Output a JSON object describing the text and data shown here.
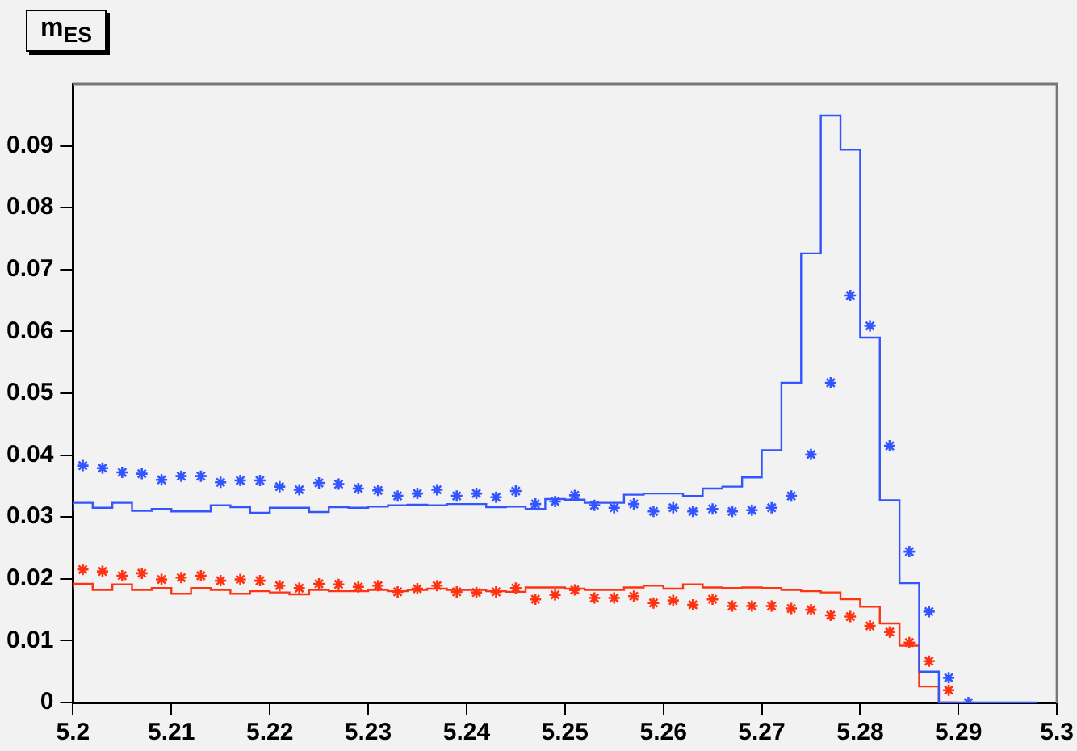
{
  "chart_data": {
    "type": "step",
    "title": "m$_{ES}$",
    "x": [
      5.201,
      5.203,
      5.205,
      5.207,
      5.209,
      5.211,
      5.213,
      5.215,
      5.217,
      5.219,
      5.221,
      5.223,
      5.225,
      5.227,
      5.229,
      5.231,
      5.233,
      5.235,
      5.237,
      5.239,
      5.241,
      5.243,
      5.245,
      5.247,
      5.249,
      5.251,
      5.253,
      5.255,
      5.257,
      5.259,
      5.261,
      5.263,
      5.265,
      5.267,
      5.269,
      5.271,
      5.273,
      5.275,
      5.277,
      5.279,
      5.281,
      5.283,
      5.285,
      5.287,
      5.289,
      5.291
    ],
    "series": [
      {
        "x": [
          5.2,
          5.202,
          5.204,
          5.206,
          5.208,
          5.21,
          5.212,
          5.214,
          5.216,
          5.218,
          5.22,
          5.222,
          5.224,
          5.226,
          5.228,
          5.23,
          5.232,
          5.234,
          5.236,
          5.238,
          5.24,
          5.242,
          5.244,
          5.246,
          5.248,
          5.25,
          5.252,
          5.254,
          5.256,
          5.258,
          5.26,
          5.262,
          5.264,
          5.266,
          5.268,
          5.27,
          5.272,
          5.274,
          5.276,
          5.278,
          5.28,
          5.282,
          5.284,
          5.286,
          5.288,
          5.29,
          5.292,
          5.294,
          5.296,
          5.298
        ],
        "color": "#3355ff",
        "values": [
          0.031,
          0.0323,
          0.0315,
          0.0323,
          0.031,
          0.0313,
          0.0309,
          0.0309,
          0.0319,
          0.0316,
          0.0307,
          0.0315,
          0.0315,
          0.0308,
          0.0316,
          0.0315,
          0.0317,
          0.0319,
          0.032,
          0.0319,
          0.0321,
          0.0321,
          0.0316,
          0.0317,
          0.0313,
          0.0329,
          0.0328,
          0.0323,
          0.0323,
          0.0336,
          0.0338,
          0.0338,
          0.0334,
          0.0346,
          0.0349,
          0.0364,
          0.0408,
          0.0517,
          0.0726,
          0.0949,
          0.0894,
          0.059,
          0.0327,
          0.0193,
          0.005,
          0,
          0,
          0,
          0,
          0
        ]
      },
      {
        "x": [
          5.2,
          5.202,
          5.204,
          5.206,
          5.208,
          5.21,
          5.212,
          5.214,
          5.216,
          5.218,
          5.22,
          5.222,
          5.224,
          5.226,
          5.228,
          5.23,
          5.232,
          5.234,
          5.236,
          5.238,
          5.24,
          5.242,
          5.244,
          5.246,
          5.248,
          5.25,
          5.252,
          5.254,
          5.256,
          5.258,
          5.26,
          5.262,
          5.264,
          5.266,
          5.268,
          5.27,
          5.272,
          5.274,
          5.276,
          5.278,
          5.28,
          5.282,
          5.284,
          5.286,
          5.288,
          5.29
        ],
        "color": "#ff3311",
        "values": [
          0.0182,
          0.0192,
          0.0182,
          0.0191,
          0.0182,
          0.0185,
          0.0176,
          0.0185,
          0.0182,
          0.0176,
          0.018,
          0.0178,
          0.0175,
          0.0182,
          0.018,
          0.018,
          0.0182,
          0.018,
          0.0182,
          0.0184,
          0.0182,
          0.0182,
          0.018,
          0.0179,
          0.0186,
          0.0186,
          0.0184,
          0.0182,
          0.0182,
          0.0186,
          0.0189,
          0.0184,
          0.0191,
          0.0186,
          0.0185,
          0.0186,
          0.0185,
          0.0182,
          0.018,
          0.0178,
          0.0167,
          0.0155,
          0.0128,
          0.0092,
          0.0026,
          0
        ]
      },
      {
        "type": "scatter",
        "color": "#3355ff",
        "marker": "cross",
        "values": [
          0.0383,
          0.0379,
          0.0372,
          0.037,
          0.036,
          0.0366,
          0.0366,
          0.0356,
          0.0359,
          0.0359,
          0.0349,
          0.0344,
          0.0355,
          0.0353,
          0.0346,
          0.0343,
          0.0334,
          0.0338,
          0.0344,
          0.0334,
          0.0338,
          0.0332,
          0.0342,
          0.0321,
          0.0325,
          0.0335,
          0.0319,
          0.0315,
          0.0321,
          0.0309,
          0.0315,
          0.0309,
          0.0313,
          0.0309,
          0.0311,
          0.0315,
          0.0334,
          0.0401,
          0.0517,
          0.0658,
          0.0609,
          0.0415,
          0.0244,
          0.0147,
          0.004,
          0
        ]
      },
      {
        "type": "scatter",
        "color": "#ff3311",
        "marker": "cross",
        "values": [
          0.0215,
          0.0212,
          0.0205,
          0.0209,
          0.0199,
          0.0202,
          0.0205,
          0.0197,
          0.0199,
          0.0197,
          0.0189,
          0.0185,
          0.0192,
          0.0191,
          0.0187,
          0.0189,
          0.0179,
          0.0184,
          0.0189,
          0.0179,
          0.0178,
          0.0179,
          0.0185,
          0.0167,
          0.0174,
          0.0182,
          0.0169,
          0.0169,
          0.0172,
          0.0161,
          0.0165,
          0.0158,
          0.0167,
          0.0156,
          0.0156,
          0.0156,
          0.0152,
          0.015,
          0.0141,
          0.0139,
          0.0124,
          0.0114,
          0.0097,
          0.0067,
          0.002,
          null
        ]
      }
    ],
    "xlim": [
      5.2,
      5.3
    ],
    "xticks": [
      5.2,
      5.21,
      5.22,
      5.23,
      5.24,
      5.25,
      5.26,
      5.27,
      5.28,
      5.29,
      5.3
    ],
    "ylim": [
      0,
      0.1
    ],
    "yticks": [
      0,
      0.01,
      0.02,
      0.03,
      0.04,
      0.05,
      0.06,
      0.07,
      0.08,
      0.09
    ],
    "grid": false,
    "legend": false
  }
}
